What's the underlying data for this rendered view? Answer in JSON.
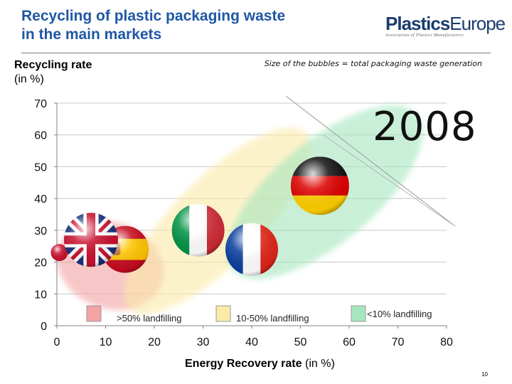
{
  "header": {
    "title_line1": "Recycling of plastic packaging waste",
    "title_line2": "in the main markets",
    "logo_main_bold": "Plastics",
    "logo_main_rest": "Europe",
    "logo_sub": "Association of Plastics Manufacturers"
  },
  "page_number": "10",
  "chart_data": {
    "type": "scatter",
    "title": "Recycling of plastic packaging waste in the main markets",
    "subtitle": "Size of the bubbles = total packaging waste generation",
    "year_label": "2008",
    "ylabel": "Recycling rate",
    "ylabel_unit": "(in %)",
    "xlabel": "Energy Recovery rate",
    "xlabel_unit": "(in %)",
    "xlim": [
      0,
      80
    ],
    "ylim": [
      0,
      70
    ],
    "x_ticks": [
      0,
      10,
      20,
      30,
      40,
      50,
      60,
      70,
      80
    ],
    "y_ticks": [
      0,
      10,
      20,
      30,
      40,
      50,
      60,
      70
    ],
    "grid": "horizontal",
    "colors": {
      "high_landfill": "#f3a3a3",
      "mid_landfill": "#fbeaa8",
      "low_landfill": "#a6e6bf",
      "axis": "#808080",
      "grid": "#c8c8c8"
    },
    "zones": [
      {
        "label": ">50% landfilling",
        "color": "#f3a3a3",
        "cx": 11,
        "cy": 19,
        "rx": 14,
        "ry": 17,
        "rot": -20
      },
      {
        "label": "10-50% landfilling",
        "color": "#fbeaa8",
        "cx": 33,
        "cy": 33,
        "rx": 32,
        "ry": 17,
        "rot": 45
      },
      {
        "label": "<10% landfilling",
        "color": "#a6e6bf",
        "cx": 55,
        "cy": 42,
        "rx": 31,
        "ry": 20,
        "rot": 40
      }
    ],
    "series": [
      {
        "flag": "uk",
        "x": 7,
        "y": 27,
        "r": 38
      },
      {
        "flag": "spain",
        "x": 14,
        "y": 24,
        "r": 33
      },
      {
        "flag": "small-partial",
        "x": 0.5,
        "y": 23,
        "r": 12
      },
      {
        "flag": "italy",
        "x": 29,
        "y": 30,
        "r": 37
      },
      {
        "flag": "france",
        "x": 40,
        "y": 24,
        "r": 37
      },
      {
        "flag": "germany",
        "x": 54,
        "y": 44,
        "r": 41
      }
    ],
    "legend": [
      {
        "label": ">50% landfilling",
        "color": "#f3a3a3"
      },
      {
        "label": "10-50% landfilling",
        "color": "#fbeaa8"
      },
      {
        "label": "<10% landfilling",
        "color": "#a6e6bf"
      }
    ]
  }
}
